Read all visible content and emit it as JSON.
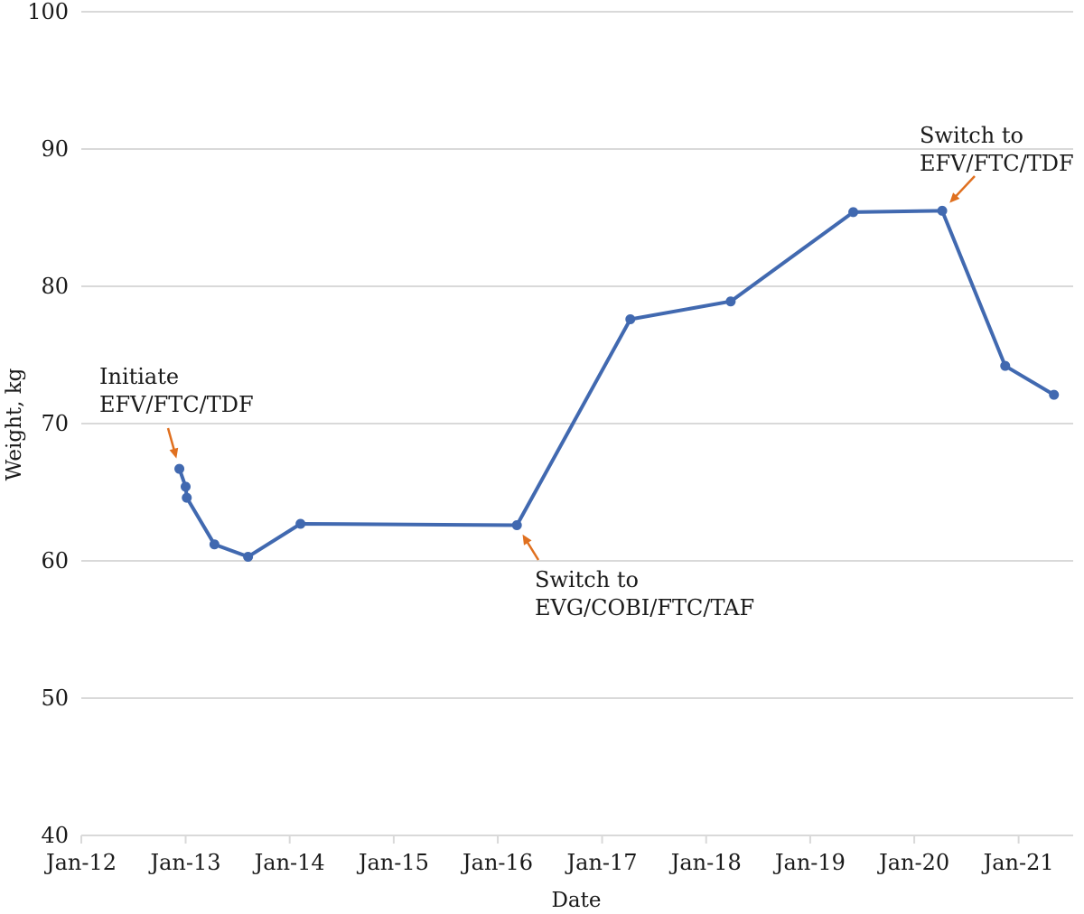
{
  "chart_data": {
    "type": "line",
    "title": "",
    "xlabel": "Date",
    "ylabel": "Weight, kg",
    "ylim": [
      40,
      100
    ],
    "yticks": [
      40,
      50,
      60,
      70,
      80,
      90,
      100
    ],
    "xlim": [
      "2012-01-01",
      "2021-07-01"
    ],
    "xticks": [
      {
        "date": "2012-01-01",
        "label": "Jan-12"
      },
      {
        "date": "2013-01-01",
        "label": "Jan-13"
      },
      {
        "date": "2014-01-01",
        "label": "Jan-14"
      },
      {
        "date": "2015-01-01",
        "label": "Jan-15"
      },
      {
        "date": "2016-01-01",
        "label": "Jan-16"
      },
      {
        "date": "2017-01-01",
        "label": "Jan-17"
      },
      {
        "date": "2018-01-01",
        "label": "Jan-18"
      },
      {
        "date": "2019-01-01",
        "label": "Jan-19"
      },
      {
        "date": "2020-01-01",
        "label": "Jan-20"
      },
      {
        "date": "2021-01-01",
        "label": "Jan-21"
      }
    ],
    "grid": true,
    "series": [
      {
        "color": "#4169b0",
        "points": [
          {
            "x": "2012-12-10",
            "y": 66.7
          },
          {
            "x": "2013-01-01",
            "y": 65.4
          },
          {
            "x": "2013-01-05",
            "y": 64.6
          },
          {
            "x": "2013-04-12",
            "y": 61.2
          },
          {
            "x": "2013-08-08",
            "y": 60.3
          },
          {
            "x": "2014-02-08",
            "y": 62.7
          },
          {
            "x": "2016-03-08",
            "y": 62.6
          },
          {
            "x": "2017-04-10",
            "y": 77.6
          },
          {
            "x": "2018-03-28",
            "y": 78.9
          },
          {
            "x": "2019-06-01",
            "y": 85.4
          },
          {
            "x": "2020-04-08",
            "y": 85.5
          },
          {
            "x": "2020-11-15",
            "y": 74.2
          },
          {
            "x": "2021-05-05",
            "y": 72.1
          }
        ]
      }
    ],
    "annotations": [
      {
        "lines": [
          "Initiate",
          "EFV/FTC/TDF"
        ],
        "target": {
          "x": "2012-12-10",
          "y": 66.7
        },
        "color": "#e0701f"
      },
      {
        "lines": [
          "Switch to",
          "EVG/COBI/FTC/TAF"
        ],
        "target": {
          "x": "2016-03-08",
          "y": 62.6
        },
        "color": "#e0701f"
      },
      {
        "lines": [
          "Switch to",
          "EFV/FTC/TDF"
        ],
        "target": {
          "x": "2020-04-08",
          "y": 85.5
        },
        "color": "#e0701f"
      }
    ]
  }
}
